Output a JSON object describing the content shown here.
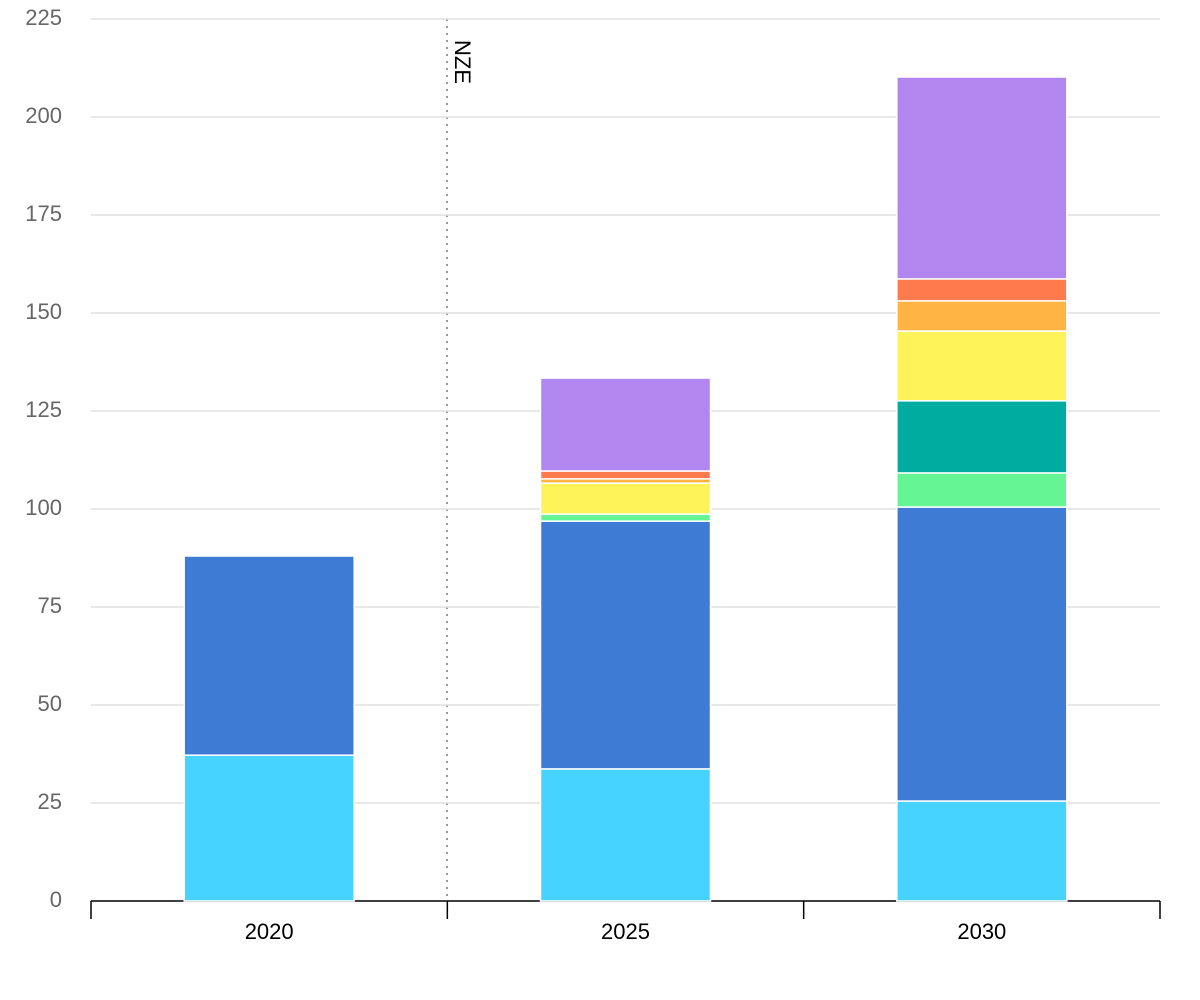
{
  "chart_data": {
    "type": "stacked-bar",
    "annotation": "NZE",
    "categories": [
      "2020",
      "2025",
      "2030"
    ],
    "series": [
      {
        "color": "#47d3ff",
        "values": [
          37.2,
          33.7,
          25.5
        ]
      },
      {
        "color": "#3d7bd4",
        "values": [
          50.8,
          63.2,
          75
        ]
      },
      {
        "color": "#66f595",
        "values": [
          0,
          1.8,
          8.7
        ]
      },
      {
        "color": "#00ab9f",
        "values": [
          0,
          0,
          18.4
        ]
      },
      {
        "color": "#fff35a",
        "values": [
          0,
          7.9,
          17.8
        ]
      },
      {
        "color": "#ffb443",
        "values": [
          0,
          1.1,
          7.7
        ]
      },
      {
        "color": "#ff7a4d",
        "values": [
          0,
          2,
          5.6
        ]
      },
      {
        "color": "#b186ee",
        "values": [
          0,
          23.7,
          51.5
        ]
      }
    ],
    "ylim": [
      0,
      225
    ],
    "yticks": [
      0,
      25,
      50,
      75,
      100,
      125,
      150,
      175,
      200,
      225
    ],
    "grid": true
  }
}
